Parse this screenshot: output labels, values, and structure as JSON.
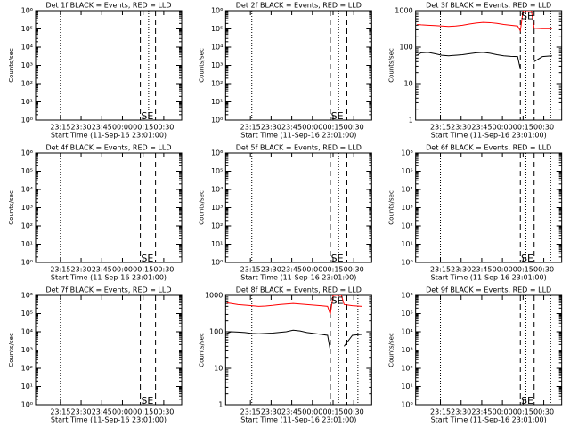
{
  "chart_data": [
    {
      "type": "line",
      "title": "Det 1f BLACK = Events, RED = LLD",
      "ylabel": "Counts/sec",
      "xlabel": "Start Time (11-Sep-16 23:01:00)",
      "xlim": [
        -4,
        102
      ],
      "xticks": [
        {
          "value": 14,
          "label": "23:15"
        },
        {
          "value": 29,
          "label": "23:30"
        },
        {
          "value": 44,
          "label": "23:45"
        },
        {
          "value": 59,
          "label": "00:00"
        },
        {
          "value": 74,
          "label": "00:15"
        },
        {
          "value": 89,
          "label": "00:30"
        }
      ],
      "ylog": true,
      "ylim": [
        1,
        1000000
      ],
      "yticks": [
        {
          "value": 1,
          "label": "10⁰"
        },
        {
          "value": 10,
          "label": "10¹"
        },
        {
          "value": 100,
          "label": "10²"
        },
        {
          "value": 1000,
          "label": "10³"
        },
        {
          "value": 10000,
          "label": "10⁴"
        },
        {
          "value": 100000,
          "label": "10⁵"
        },
        {
          "value": 1000000,
          "label": "10⁶"
        }
      ],
      "vlines": [
        {
          "x": 14,
          "style": "dotted"
        },
        {
          "x": 72,
          "style": "dashed"
        },
        {
          "x": 78,
          "style": "dotted"
        },
        {
          "x": 83,
          "style": "dashed"
        }
      ],
      "annotations": [
        {
          "text": "SE",
          "x": 77,
          "y": 1.6
        }
      ]
    },
    {
      "type": "line",
      "title": "Det 2f BLACK = Events, RED = LLD",
      "ylabel": "Counts/sec",
      "xlabel": "Start Time (11-Sep-16 23:01:00)",
      "xlim": [
        -4,
        102
      ],
      "xticks": [
        {
          "value": 14,
          "label": "23:15"
        },
        {
          "value": 29,
          "label": "23:30"
        },
        {
          "value": 44,
          "label": "23:45"
        },
        {
          "value": 59,
          "label": "00:00"
        },
        {
          "value": 74,
          "label": "00:15"
        },
        {
          "value": 89,
          "label": "00:30"
        }
      ],
      "ylog": true,
      "ylim": [
        1,
        1000000
      ],
      "yticks": [
        {
          "value": 1,
          "label": "10⁰"
        },
        {
          "value": 10,
          "label": "10¹"
        },
        {
          "value": 100,
          "label": "10²"
        },
        {
          "value": 1000,
          "label": "10³"
        },
        {
          "value": 10000,
          "label": "10⁴"
        },
        {
          "value": 100000,
          "label": "10⁵"
        },
        {
          "value": 1000000,
          "label": "10⁶"
        }
      ],
      "vlines": [
        {
          "x": 15,
          "style": "dotted"
        },
        {
          "x": 72,
          "style": "dashed"
        },
        {
          "x": 78,
          "style": "dotted"
        },
        {
          "x": 84,
          "style": "dashed"
        }
      ],
      "annotations": [
        {
          "text": "SE",
          "x": 77,
          "y": 1.6
        }
      ]
    },
    {
      "type": "line",
      "title": "Det 3f BLACK = Events, RED = LLD",
      "ylabel": "Counts/sec",
      "xlabel": "Start Time (11-Sep-16 23:01:00)",
      "xlim": [
        -4,
        102
      ],
      "xticks": [
        {
          "value": 14,
          "label": "23:15"
        },
        {
          "value": 29,
          "label": "23:30"
        },
        {
          "value": 44,
          "label": "23:45"
        },
        {
          "value": 59,
          "label": "00:00"
        },
        {
          "value": 74,
          "label": "00:15"
        },
        {
          "value": 89,
          "label": "00:30"
        }
      ],
      "ylog": true,
      "ylim": [
        1,
        1000
      ],
      "yticks": [
        1,
        10,
        100,
        1000
      ],
      "vlines": [
        {
          "x": 14,
          "style": "dotted"
        },
        {
          "x": 72,
          "style": "dashed"
        },
        {
          "x": 76,
          "style": "dotted"
        },
        {
          "x": 82,
          "style": "dashed"
        },
        {
          "x": 94,
          "style": "dotted"
        }
      ],
      "annotations": [
        {
          "text": "SE",
          "x": 77,
          "y": 700
        }
      ],
      "x": [
        -3,
        0,
        5,
        10,
        15,
        20,
        25,
        30,
        35,
        40,
        45,
        50,
        55,
        60,
        65,
        70,
        72,
        74,
        77,
        80,
        82,
        88,
        95
      ],
      "series": [
        {
          "name": "LLD",
          "color": "#ff0000",
          "values": [
            420,
            410,
            400,
            390,
            380,
            370,
            380,
            400,
            430,
            460,
            480,
            470,
            450,
            420,
            400,
            380,
            280,
            1000,
            1000,
            1000,
            330,
            320,
            320
          ]
        },
        {
          "name": "Events",
          "color": "#000000",
          "values": [
            60,
            70,
            72,
            66,
            60,
            58,
            60,
            62,
            66,
            70,
            72,
            68,
            62,
            58,
            56,
            55,
            25,
            null,
            null,
            null,
            40,
            55,
            58
          ]
        }
      ]
    },
    {
      "type": "line",
      "title": "Det 4f BLACK = Events, RED = LLD",
      "ylabel": "Counts/sec",
      "xlabel": "Start Time (11-Sep-16 23:01:00)",
      "xlim": [
        -4,
        102
      ],
      "xticks": [
        {
          "value": 14,
          "label": "23:15"
        },
        {
          "value": 29,
          "label": "23:30"
        },
        {
          "value": 44,
          "label": "23:45"
        },
        {
          "value": 59,
          "label": "00:00"
        },
        {
          "value": 74,
          "label": "00:15"
        },
        {
          "value": 89,
          "label": "00:30"
        }
      ],
      "ylog": true,
      "ylim": [
        1,
        1000000
      ],
      "yticks": [
        {
          "value": 1,
          "label": "10⁰"
        },
        {
          "value": 10,
          "label": "10¹"
        },
        {
          "value": 100,
          "label": "10²"
        },
        {
          "value": 1000,
          "label": "10³"
        },
        {
          "value": 10000,
          "label": "10⁴"
        },
        {
          "value": 100000,
          "label": "10⁵"
        },
        {
          "value": 1000000,
          "label": "10⁶"
        }
      ],
      "vlines": [
        {
          "x": 14,
          "style": "dotted"
        },
        {
          "x": 72,
          "style": "dashed"
        },
        {
          "x": 83,
          "style": "dashed"
        }
      ],
      "annotations": [
        {
          "text": "SE",
          "x": 77,
          "y": 1.6
        }
      ]
    },
    {
      "type": "line",
      "title": "Det 5f BLACK = Events, RED = LLD",
      "ylabel": "Counts/sec",
      "xlabel": "Start Time (11-Sep-16 23:01:00)",
      "xlim": [
        -4,
        102
      ],
      "xticks": [
        {
          "value": 14,
          "label": "23:15"
        },
        {
          "value": 29,
          "label": "23:30"
        },
        {
          "value": 44,
          "label": "23:45"
        },
        {
          "value": 59,
          "label": "00:00"
        },
        {
          "value": 74,
          "label": "00:15"
        },
        {
          "value": 89,
          "label": "00:30"
        }
      ],
      "ylog": true,
      "ylim": [
        1,
        1000000
      ],
      "yticks": [
        {
          "value": 1,
          "label": "10⁰"
        },
        {
          "value": 10,
          "label": "10¹"
        },
        {
          "value": 100,
          "label": "10²"
        },
        {
          "value": 1000,
          "label": "10³"
        },
        {
          "value": 10000,
          "label": "10⁴"
        },
        {
          "value": 100000,
          "label": "10⁵"
        },
        {
          "value": 1000000,
          "label": "10⁶"
        }
      ],
      "vlines": [
        {
          "x": 15,
          "style": "dotted"
        },
        {
          "x": 72,
          "style": "dashed"
        },
        {
          "x": 78,
          "style": "dotted"
        },
        {
          "x": 84,
          "style": "dashed"
        }
      ],
      "annotations": [
        {
          "text": "SE",
          "x": 77,
          "y": 1.6
        }
      ]
    },
    {
      "type": "line",
      "title": "Det 6f BLACK = Events, RED = LLD",
      "ylabel": "Counts/sec",
      "xlabel": "Start Time (11-Sep-16 23:01:00)",
      "xlim": [
        -4,
        102
      ],
      "xticks": [
        {
          "value": 14,
          "label": "23:15"
        },
        {
          "value": 29,
          "label": "23:30"
        },
        {
          "value": 44,
          "label": "23:45"
        },
        {
          "value": 59,
          "label": "00:00"
        },
        {
          "value": 74,
          "label": "00:15"
        },
        {
          "value": 89,
          "label": "00:30"
        }
      ],
      "ylog": true,
      "ylim": [
        1,
        1000000
      ],
      "yticks": [
        {
          "value": 1,
          "label": "10⁰"
        },
        {
          "value": 10,
          "label": "10¹"
        },
        {
          "value": 100,
          "label": "10²"
        },
        {
          "value": 1000,
          "label": "10³"
        },
        {
          "value": 10000,
          "label": "10⁴"
        },
        {
          "value": 100000,
          "label": "10⁵"
        },
        {
          "value": 1000000,
          "label": "10⁶"
        }
      ],
      "vlines": [
        {
          "x": 14,
          "style": "dotted"
        },
        {
          "x": 72,
          "style": "dashed"
        },
        {
          "x": 76,
          "style": "dotted"
        },
        {
          "x": 82,
          "style": "dashed"
        },
        {
          "x": 94,
          "style": "dotted"
        }
      ],
      "annotations": [
        {
          "text": "SE",
          "x": 77,
          "y": 1.6
        }
      ]
    },
    {
      "type": "line",
      "title": "Det 7f BLACK = Events, RED = LLD",
      "ylabel": "Counts/sec",
      "xlabel": "Start Time (11-Sep-16 23:01:00)",
      "xlim": [
        -4,
        102
      ],
      "xticks": [
        {
          "value": 14,
          "label": "23:15"
        },
        {
          "value": 29,
          "label": "23:30"
        },
        {
          "value": 44,
          "label": "23:45"
        },
        {
          "value": 59,
          "label": "00:00"
        },
        {
          "value": 74,
          "label": "00:15"
        },
        {
          "value": 89,
          "label": "00:30"
        }
      ],
      "ylog": true,
      "ylim": [
        1,
        1000000
      ],
      "yticks": [
        {
          "value": 1,
          "label": "10⁰"
        },
        {
          "value": 10,
          "label": "10¹"
        },
        {
          "value": 100,
          "label": "10²"
        },
        {
          "value": 1000,
          "label": "10³"
        },
        {
          "value": 10000,
          "label": "10⁴"
        },
        {
          "value": 100000,
          "label": "10⁵"
        },
        {
          "value": 1000000,
          "label": "10⁶"
        }
      ],
      "vlines": [
        {
          "x": 14,
          "style": "dotted"
        },
        {
          "x": 72,
          "style": "dashed"
        },
        {
          "x": 83,
          "style": "dashed"
        }
      ],
      "annotations": [
        {
          "text": "SE",
          "x": 77,
          "y": 1.6
        }
      ]
    },
    {
      "type": "line",
      "title": "Det 8f BLACK = Events, RED = LLD",
      "ylabel": "Counts/sec",
      "xlabel": "Start Time (11-Sep-16 23:01:00)",
      "xlim": [
        -4,
        102
      ],
      "xticks": [
        {
          "value": 14,
          "label": "23:15"
        },
        {
          "value": 29,
          "label": "23:30"
        },
        {
          "value": 44,
          "label": "23:45"
        },
        {
          "value": 59,
          "label": "00:00"
        },
        {
          "value": 74,
          "label": "00:15"
        },
        {
          "value": 89,
          "label": "00:30"
        }
      ],
      "ylog": true,
      "ylim": [
        1,
        1000
      ],
      "yticks": [
        1,
        10,
        100,
        1000
      ],
      "vlines": [
        {
          "x": 15,
          "style": "dotted"
        },
        {
          "x": 72,
          "style": "dashed"
        },
        {
          "x": 78,
          "style": "dotted"
        },
        {
          "x": 84,
          "style": "dashed"
        },
        {
          "x": 92,
          "style": "dotted"
        }
      ],
      "annotations": [
        {
          "text": "SE",
          "x": 77,
          "y": 700
        }
      ],
      "x": [
        -3,
        0,
        5,
        10,
        15,
        20,
        25,
        30,
        35,
        40,
        45,
        50,
        55,
        60,
        65,
        70,
        72,
        74,
        77,
        80,
        82,
        88,
        95
      ],
      "series": [
        {
          "name": "LLD",
          "color": "#ff0000",
          "values": [
            620,
            600,
            560,
            540,
            520,
            500,
            510,
            530,
            560,
            580,
            600,
            580,
            560,
            540,
            520,
            500,
            300,
            1000,
            1000,
            1000,
            560,
            520,
            500
          ]
        },
        {
          "name": "Events",
          "color": "#000000",
          "values": [
            90,
            100,
            98,
            95,
            90,
            88,
            90,
            92,
            96,
            100,
            110,
            105,
            95,
            90,
            85,
            80,
            30,
            null,
            null,
            null,
            40,
            80,
            85
          ]
        }
      ]
    },
    {
      "type": "line",
      "title": "Det 9f BLACK = Events, RED = LLD",
      "ylabel": "Counts/sec",
      "xlabel": "Start Time (11-Sep-16 23:01:00)",
      "xlim": [
        -4,
        102
      ],
      "xticks": [
        {
          "value": 14,
          "label": "23:15"
        },
        {
          "value": 29,
          "label": "23:30"
        },
        {
          "value": 44,
          "label": "23:45"
        },
        {
          "value": 59,
          "label": "00:00"
        },
        {
          "value": 74,
          "label": "00:15"
        },
        {
          "value": 89,
          "label": "00:30"
        }
      ],
      "ylog": true,
      "ylim": [
        1,
        1000000
      ],
      "yticks": [
        {
          "value": 1,
          "label": "10⁰"
        },
        {
          "value": 10,
          "label": "10¹"
        },
        {
          "value": 100,
          "label": "10²"
        },
        {
          "value": 1000,
          "label": "10³"
        },
        {
          "value": 10000,
          "label": "10⁴"
        },
        {
          "value": 100000,
          "label": "10⁵"
        },
        {
          "value": 1000000,
          "label": "10⁶"
        }
      ],
      "vlines": [
        {
          "x": 14,
          "style": "dotted"
        },
        {
          "x": 72,
          "style": "dashed"
        },
        {
          "x": 76,
          "style": "dotted"
        },
        {
          "x": 82,
          "style": "dashed"
        },
        {
          "x": 94,
          "style": "dotted"
        }
      ],
      "annotations": [
        {
          "text": "SE",
          "x": 77,
          "y": 1.6
        }
      ]
    }
  ]
}
